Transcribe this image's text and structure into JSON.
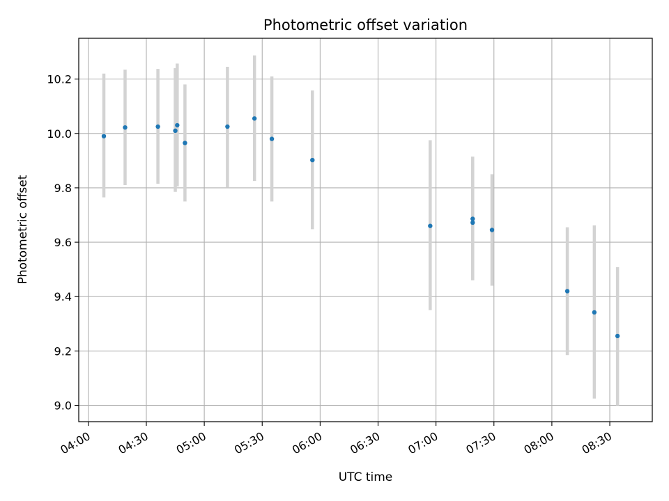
{
  "chart_data": {
    "type": "scatter",
    "title": "Photometric offset variation",
    "xlabel": "UTC time",
    "ylabel": "Photometric offset",
    "x_axis": {
      "type": "time",
      "range": [
        "03:55",
        "08:52"
      ],
      "ticks": [
        "04:00",
        "04:30",
        "05:00",
        "05:30",
        "06:00",
        "06:30",
        "07:00",
        "07:30",
        "08:00",
        "08:30"
      ],
      "tick_label_rotation_deg": 30
    },
    "y_axis": {
      "range": [
        8.94,
        10.35
      ],
      "ticks": [
        9.0,
        9.2,
        9.4,
        9.6,
        9.8,
        10.0,
        10.2
      ]
    },
    "grid": true,
    "colors": {
      "point": "#1f77b4",
      "error_bar": "#d3d3d3",
      "grid": "#b0b0b0"
    },
    "points": [
      {
        "x": "04:08",
        "y": 9.99,
        "ylow": 9.765,
        "yhigh": 10.22
      },
      {
        "x": "04:19",
        "y": 10.022,
        "ylow": 9.81,
        "yhigh": 10.235
      },
      {
        "x": "04:36",
        "y": 10.025,
        "ylow": 9.815,
        "yhigh": 10.237
      },
      {
        "x": "04:45",
        "y": 10.01,
        "ylow": 9.785,
        "yhigh": 10.24
      },
      {
        "x": "04:46",
        "y": 10.03,
        "ylow": 9.805,
        "yhigh": 10.257
      },
      {
        "x": "04:50",
        "y": 9.965,
        "ylow": 9.75,
        "yhigh": 10.18
      },
      {
        "x": "05:12",
        "y": 10.025,
        "ylow": 9.802,
        "yhigh": 10.245
      },
      {
        "x": "05:26",
        "y": 10.055,
        "ylow": 9.825,
        "yhigh": 10.287
      },
      {
        "x": "05:35",
        "y": 9.98,
        "ylow": 9.75,
        "yhigh": 10.21
      },
      {
        "x": "05:56",
        "y": 9.902,
        "ylow": 9.648,
        "yhigh": 10.158
      },
      {
        "x": "06:57",
        "y": 9.66,
        "ylow": 9.35,
        "yhigh": 9.975
      },
      {
        "x": "07:19",
        "y": 9.672,
        "ylow": 9.46,
        "yhigh": 9.89
      },
      {
        "x": "07:19",
        "y": 9.686,
        "ylow": 9.46,
        "yhigh": 9.915
      },
      {
        "x": "07:29",
        "y": 9.645,
        "ylow": 9.44,
        "yhigh": 9.85
      },
      {
        "x": "08:08",
        "y": 9.42,
        "ylow": 9.185,
        "yhigh": 9.655
      },
      {
        "x": "08:22",
        "y": 9.342,
        "ylow": 9.025,
        "yhigh": 9.662
      },
      {
        "x": "08:34",
        "y": 9.255,
        "ylow": 9.0,
        "yhigh": 9.508
      }
    ]
  }
}
